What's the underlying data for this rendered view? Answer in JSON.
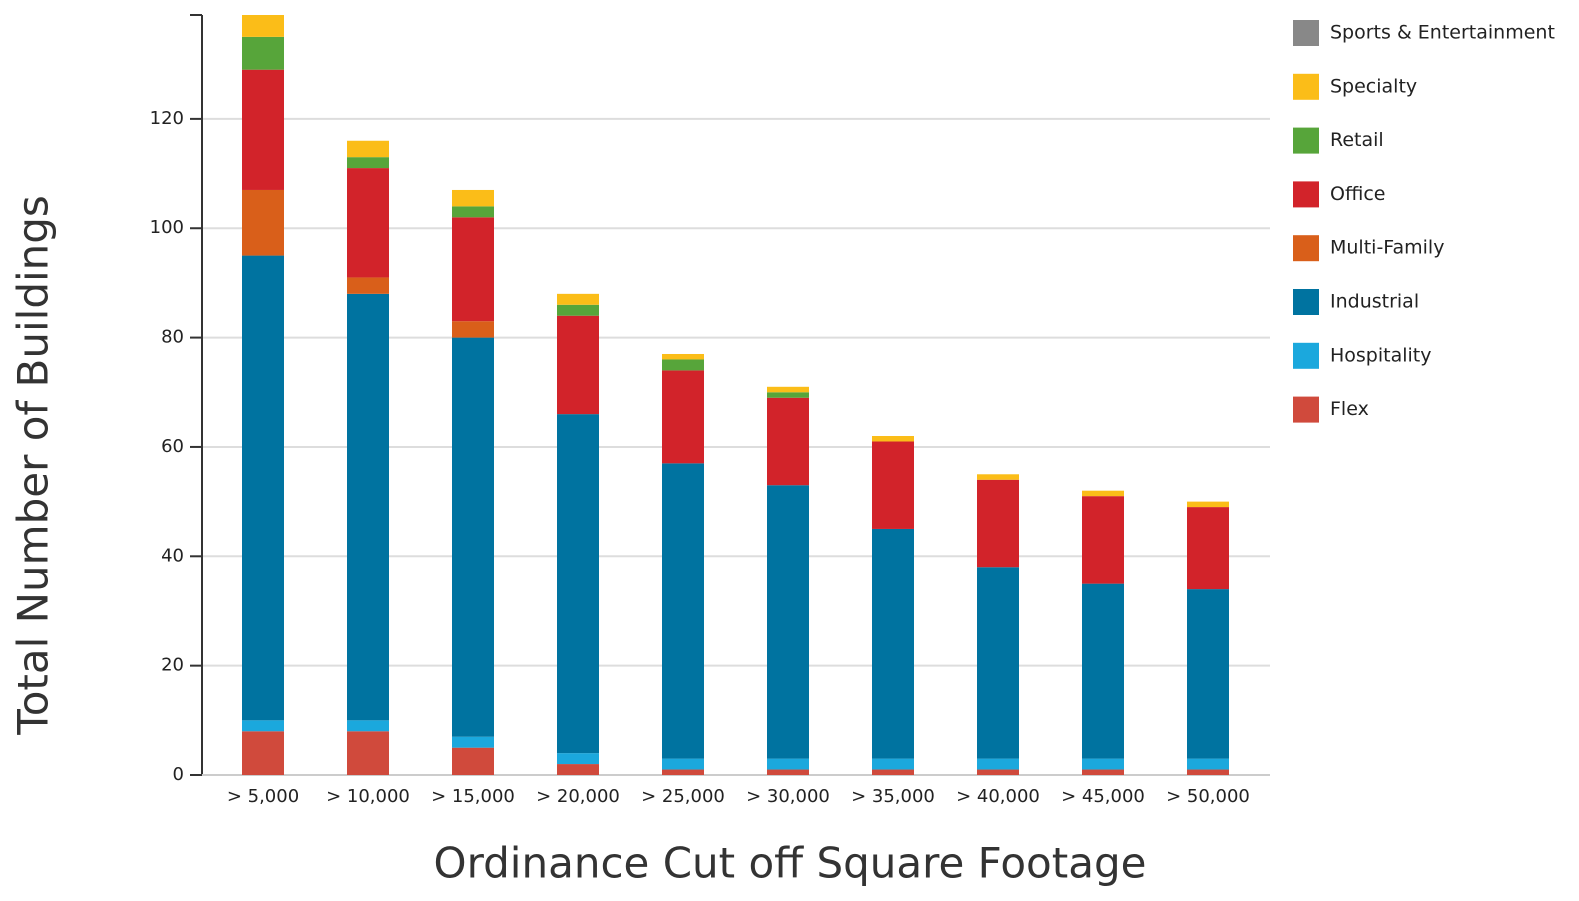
{
  "chart_data": {
    "type": "bar",
    "stacked": true,
    "y_label": "Total Number of Buildings",
    "x_label": "Ordinance Cut off Square Footage",
    "categories": [
      "> 5,000",
      "> 10,000",
      "> 15,000",
      "> 20,000",
      "> 25,000",
      "> 30,000",
      "> 35,000",
      "> 40,000",
      "> 45,000",
      "> 50,000"
    ],
    "series": [
      {
        "name": "Flex",
        "color": "#d04a3c",
        "values": [
          8,
          8,
          5,
          2,
          1,
          1,
          1,
          1,
          1,
          1
        ]
      },
      {
        "name": "Hospitality",
        "color": "#1ba8dd",
        "values": [
          2,
          2,
          2,
          2,
          2,
          2,
          2,
          2,
          2,
          2
        ]
      },
      {
        "name": "Industrial",
        "color": "#0073a0",
        "values": [
          85,
          78,
          73,
          62,
          54,
          50,
          42,
          35,
          32,
          31
        ]
      },
      {
        "name": "Multi-Family",
        "color": "#d95f1a",
        "values": [
          12,
          3,
          3,
          0,
          0,
          0,
          0,
          0,
          0,
          0
        ]
      },
      {
        "name": "Office",
        "color": "#d2232a",
        "values": [
          22,
          20,
          19,
          18,
          17,
          16,
          16,
          16,
          16,
          15
        ]
      },
      {
        "name": "Retail",
        "color": "#57a53a",
        "values": [
          6,
          2,
          2,
          2,
          2,
          1,
          0,
          0,
          0,
          0
        ]
      },
      {
        "name": "Specialty",
        "color": "#fbbd18",
        "values": [
          4,
          3,
          3,
          2,
          1,
          1,
          1,
          1,
          1,
          1
        ]
      },
      {
        "name": "Sports & Entertainment",
        "color": "#888888",
        "values": [
          0,
          0,
          0,
          0,
          0,
          0,
          0,
          0,
          0,
          0
        ]
      }
    ],
    "ylim": [
      0,
      139
    ],
    "yticks": [
      0,
      20,
      40,
      60,
      80,
      100,
      120
    ],
    "grid": true,
    "legend": "right"
  }
}
